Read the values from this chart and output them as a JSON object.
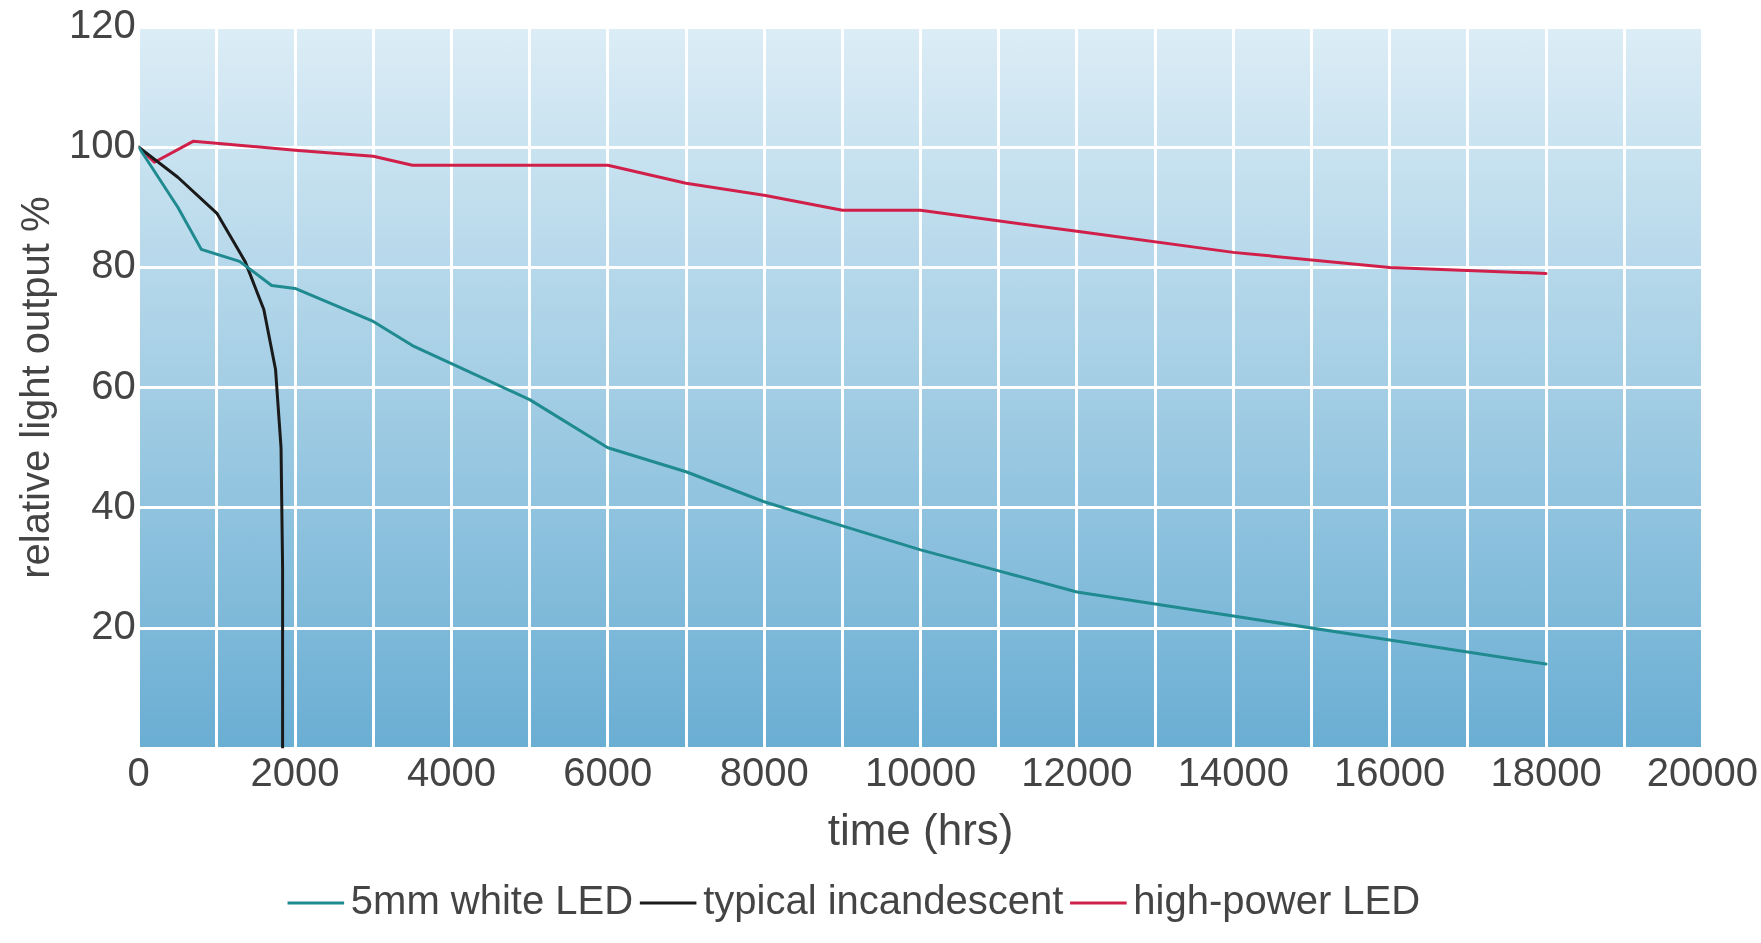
{
  "chart_data": {
    "type": "line",
    "xlabel": "time (hrs)",
    "ylabel": "relative light output %",
    "xlim": [
      0,
      20000
    ],
    "ylim": [
      0,
      120
    ],
    "xticks": [
      0,
      {
        "value": 1000,
        "label": null
      },
      2000,
      {
        "value": 3000,
        "label": null
      },
      4000,
      {
        "value": 5000,
        "label": null
      },
      6000,
      {
        "value": 7000,
        "label": null
      },
      8000,
      {
        "value": 9000,
        "label": null
      },
      10000,
      {
        "value": 11000,
        "label": null
      },
      12000,
      {
        "value": 13000,
        "label": null
      },
      14000,
      {
        "value": 15000,
        "label": null
      },
      16000,
      {
        "value": 17000,
        "label": null
      },
      18000,
      {
        "value": 19000,
        "label": null
      },
      20000
    ],
    "yticks": [
      {
        "value": 0,
        "label": null
      },
      20,
      40,
      60,
      80,
      100,
      120
    ],
    "grid": true,
    "legend": "bottom",
    "marker": "none",
    "line_style": "solid",
    "series": [
      {
        "name": "5mm white LED",
        "color": "#1f8a8f",
        "x": [
          0,
          500,
          800,
          1290,
          1700,
          2000,
          3000,
          3500,
          4000,
          5000,
          6000,
          7000,
          8000,
          9000,
          10000,
          11000,
          12000,
          14000,
          16000,
          18000
        ],
        "values": [
          100,
          90,
          83,
          81,
          77,
          76.5,
          71,
          67,
          64,
          58,
          50,
          46,
          41,
          37,
          33,
          29.5,
          26,
          22,
          18,
          14
        ]
      },
      {
        "name": "typical incandescent",
        "color": "#1a1a1a",
        "x": [
          0,
          500,
          1000,
          1360,
          1600,
          1750,
          1820,
          1840,
          1840
        ],
        "values": [
          100,
          95,
          89,
          81,
          73,
          63,
          50,
          30,
          0
        ]
      },
      {
        "name": "high-power LED",
        "color": "#d0204a",
        "x": [
          0,
          200,
          700,
          2000,
          3000,
          3500,
          6000,
          7000,
          8000,
          9000,
          10000,
          12000,
          14000,
          16000,
          18000
        ],
        "values": [
          100,
          97.5,
          101,
          99.5,
          98.5,
          97,
          97,
          94,
          92,
          89.5,
          89.5,
          86,
          82.5,
          80,
          79
        ]
      }
    ]
  }
}
